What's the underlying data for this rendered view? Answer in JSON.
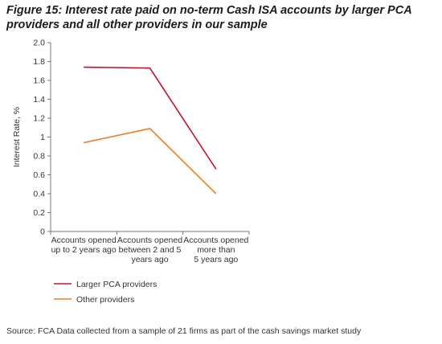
{
  "title": "Figure 15: Interest rate paid on no-term Cash ISA accounts by larger PCA providers and all other providers in our sample",
  "source": "Source: FCA Data collected from a sample of 21 firms as part of the cash savings market study",
  "chart_data": {
    "type": "line",
    "title": "Figure 15: Interest rate paid on no-term Cash ISA accounts by larger PCA providers and all other providers in our sample",
    "ylabel": "Interest Rate, %",
    "xlabel": "",
    "ylim": [
      0,
      2.0
    ],
    "yticks": [
      "0",
      "0.2",
      "0.4",
      "0.6",
      "0.8",
      "1",
      "1.2",
      "1.4",
      "1.6",
      "1.8",
      "2.0"
    ],
    "categories": [
      [
        "Accounts opened",
        "up to 2 years ago"
      ],
      [
        "Accounts opened",
        "between 2 and 5",
        "years ago"
      ],
      [
        "Accounts opened",
        "more than",
        "5 years ago"
      ]
    ],
    "series": [
      {
        "name": "Larger PCA providers",
        "color": "#c8102e",
        "values": [
          1.74,
          1.73,
          0.66
        ]
      },
      {
        "name": "Other providers",
        "color": "#f07d1e",
        "values": [
          0.94,
          1.09,
          0.4
        ]
      }
    ],
    "grid": false,
    "legend": "bottom-left"
  }
}
